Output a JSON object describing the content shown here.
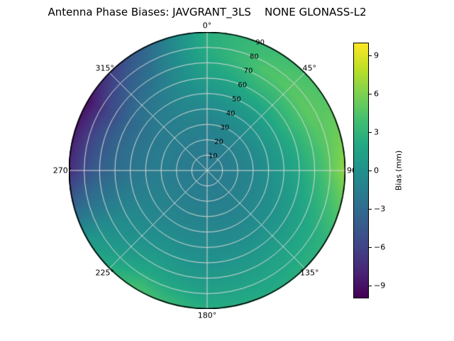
{
  "title": "Antenna Phase Biases: JAVGRANT_3LS    NONE GLONASS-L2",
  "chart_data": {
    "type": "heatmap",
    "projection": "polar",
    "title": "Antenna Phase Biases: JAVGRANT_3LS    NONE GLONASS-L2",
    "angular_axis": {
      "unit": "degrees",
      "zero_location": "top",
      "direction": "clockwise",
      "tick_angles": [
        0,
        45,
        90,
        135,
        180,
        225,
        270,
        315
      ],
      "tick_labels": [
        "0°",
        "45°",
        "90",
        "135°",
        "180°",
        "225°",
        "270°",
        "315°"
      ]
    },
    "radial_axis": {
      "min": 0,
      "max": 90,
      "ticks": [
        10,
        20,
        30,
        40,
        50,
        60,
        70,
        80,
        90
      ],
      "label_position_deg": 22.5,
      "grid": true
    },
    "colorbar": {
      "label": "Bias (mm)",
      "vmin": -10,
      "vmax": 10,
      "ticks": [
        -9,
        -6,
        -3,
        0,
        3,
        6,
        9
      ],
      "tick_labels": [
        "−9",
        "−6",
        "−3",
        "0",
        "3",
        "6",
        "9"
      ],
      "colormap": "viridis"
    },
    "azimuth_deg": [
      0,
      30,
      60,
      90,
      120,
      150,
      180,
      210,
      240,
      270,
      300,
      330
    ],
    "zenith_deg": [
      0,
      15,
      30,
      45,
      60,
      75,
      90
    ],
    "values_mm": [
      [
        -1.8,
        -1.6,
        -1.2,
        -0.2,
        1.2,
        2.2,
        2.6
      ],
      [
        -1.8,
        -1.6,
        -0.8,
        0.6,
        2.6,
        4.4,
        3.6
      ],
      [
        -1.8,
        -1.5,
        -0.6,
        1.0,
        3.0,
        5.0,
        4.6
      ],
      [
        -1.8,
        -1.5,
        -0.9,
        0.4,
        2.0,
        4.0,
        6.8
      ],
      [
        -1.8,
        -1.6,
        -1.0,
        -0.2,
        0.8,
        2.0,
        3.0
      ],
      [
        -1.8,
        -1.6,
        -1.2,
        -0.6,
        0.4,
        1.4,
        2.2
      ],
      [
        -1.8,
        -1.6,
        -1.2,
        -0.6,
        0.0,
        1.0,
        2.4
      ],
      [
        -1.8,
        -1.6,
        -1.2,
        -0.6,
        0.4,
        1.8,
        4.2
      ],
      [
        -1.8,
        -1.6,
        -1.3,
        -1.0,
        -0.6,
        -0.2,
        0.6
      ],
      [
        -1.8,
        -1.7,
        -1.6,
        -2.0,
        -3.0,
        -4.5,
        -7.5
      ],
      [
        -1.8,
        -1.7,
        -1.6,
        -2.2,
        -3.5,
        -6.0,
        -9.2
      ],
      [
        -1.8,
        -1.7,
        -1.4,
        -1.2,
        -1.6,
        -2.6,
        -4.0
      ]
    ]
  },
  "colors": {
    "background": "#ffffff",
    "grid": "#d8d8d8",
    "outline": "#000000",
    "viridis_stops": [
      [
        0.0,
        "#440154"
      ],
      [
        0.1,
        "#482475"
      ],
      [
        0.2,
        "#414487"
      ],
      [
        0.3,
        "#355f8d"
      ],
      [
        0.4,
        "#2a788e"
      ],
      [
        0.5,
        "#21918c"
      ],
      [
        0.6,
        "#22a884"
      ],
      [
        0.7,
        "#44bf70"
      ],
      [
        0.8,
        "#7ad151"
      ],
      [
        0.9,
        "#bddf26"
      ],
      [
        1.0,
        "#fde725"
      ]
    ]
  }
}
